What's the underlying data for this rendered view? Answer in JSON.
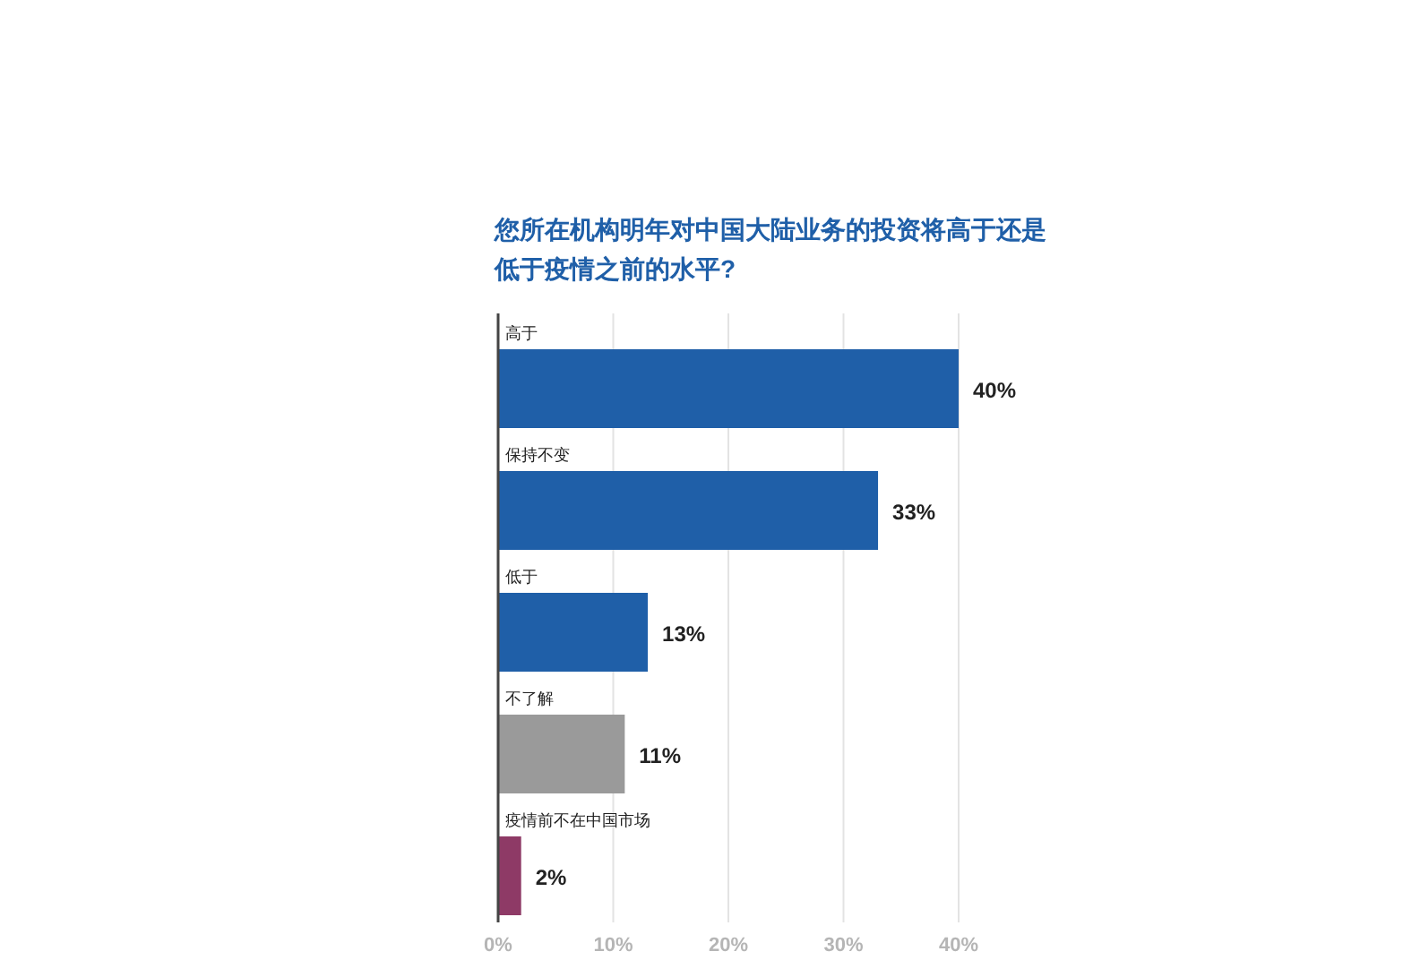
{
  "chart_data": {
    "type": "bar",
    "orientation": "horizontal",
    "title": "您所在机构明年对中国大陆业务的投资将高于还是低于疫情之前的水平?",
    "categories": [
      "高于",
      "保持不变",
      "低于",
      "不了解",
      "疫情前不在中国市场"
    ],
    "values": [
      40,
      33,
      13,
      11,
      2
    ],
    "colors": [
      "#1f5fa8",
      "#1f5fa8",
      "#1f5fa8",
      "#9a9a9a",
      "#8e3a66"
    ],
    "value_labels": [
      "40%",
      "33%",
      "13%",
      "11%",
      "2%"
    ],
    "xlim": [
      0,
      40
    ],
    "xticks": [
      {
        "value": 0,
        "label": "0%"
      },
      {
        "value": 10,
        "label": "10%"
      },
      {
        "value": 20,
        "label": "20%"
      },
      {
        "value": 30,
        "label": "30%"
      },
      {
        "value": 40,
        "label": "40%"
      }
    ],
    "grid": "x"
  }
}
